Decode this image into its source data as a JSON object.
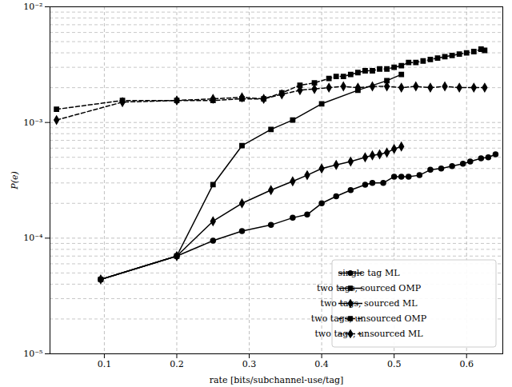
{
  "chart_data": {
    "type": "line",
    "x_label": "rate [bits/subchannel-use/tag]",
    "y_label": "P(e)",
    "log": "y",
    "grid": true,
    "legend": "lower right",
    "xlim": [
      0.025,
      0.65
    ],
    "xticks": [
      0.1,
      0.2,
      0.3,
      0.4,
      0.5,
      0.6
    ],
    "ylim": [
      1e-05,
      0.01
    ],
    "yticks": [
      {
        "value": 1e-05,
        "label": "10⁻⁵"
      },
      {
        "value": 0.0001,
        "label": "10⁻⁴"
      },
      {
        "value": 0.001,
        "label": "10⁻³"
      },
      {
        "value": 0.01,
        "label": "10⁻²"
      }
    ],
    "series": [
      {
        "name": "single tag ML",
        "color": "#000000",
        "marker": "circle",
        "line_style": "solid",
        "x": [
          0.095,
          0.2,
          0.25,
          0.29,
          0.33,
          0.36,
          0.38,
          0.4,
          0.42,
          0.44,
          0.46,
          0.47,
          0.485,
          0.5,
          0.51,
          0.52,
          0.535,
          0.55,
          0.565,
          0.58,
          0.595,
          0.605,
          0.62,
          0.63,
          0.64
        ],
        "values": [
          4.4e-05,
          7e-05,
          9.5e-05,
          0.000115,
          0.00013,
          0.00015,
          0.00016,
          0.0002,
          0.00023,
          0.00026,
          0.00029,
          0.0003,
          0.0003,
          0.00034,
          0.00034,
          0.00034,
          0.00035,
          0.00039,
          0.0004,
          0.00042,
          0.00044,
          0.00046,
          0.00049,
          0.0005,
          0.00053
        ]
      },
      {
        "name": "two tags, sourced OMP",
        "color": "#000000",
        "marker": "square",
        "line_style": "solid",
        "x": [
          0.095,
          0.2,
          0.25,
          0.29,
          0.33,
          0.36,
          0.4,
          0.45,
          0.49,
          0.51
        ],
        "values": [
          4.4e-05,
          7e-05,
          0.00029,
          0.00063,
          0.00087,
          0.00105,
          0.00145,
          0.0019,
          0.0023,
          0.0026
        ]
      },
      {
        "name": "two tags, sourced ML",
        "color": "#000000",
        "marker": "diamond",
        "line_style": "solid",
        "x": [
          0.095,
          0.2,
          0.25,
          0.29,
          0.33,
          0.36,
          0.38,
          0.4,
          0.42,
          0.44,
          0.46,
          0.47,
          0.48,
          0.49,
          0.5,
          0.51
        ],
        "values": [
          4.4e-05,
          7e-05,
          0.00014,
          0.0002,
          0.00026,
          0.00031,
          0.00035,
          0.0004,
          0.00043,
          0.00046,
          0.0005,
          0.00052,
          0.00053,
          0.00055,
          0.00059,
          0.00062
        ]
      },
      {
        "name": "two tags, unsourced OMP",
        "color": "#000000",
        "marker": "square",
        "line_style": "dashed",
        "x": [
          0.034,
          0.125,
          0.2,
          0.25,
          0.29,
          0.32,
          0.345,
          0.37,
          0.39,
          0.41,
          0.42,
          0.43,
          0.44,
          0.45,
          0.46,
          0.47,
          0.48,
          0.49,
          0.5,
          0.51,
          0.52,
          0.53,
          0.54,
          0.55,
          0.56,
          0.57,
          0.58,
          0.59,
          0.6,
          0.61,
          0.62,
          0.625
        ],
        "values": [
          0.0013,
          0.00155,
          0.00155,
          0.00155,
          0.0016,
          0.0016,
          0.0018,
          0.0021,
          0.0022,
          0.0024,
          0.0025,
          0.0025,
          0.0026,
          0.0027,
          0.0028,
          0.0028,
          0.0029,
          0.0029,
          0.003,
          0.0031,
          0.0033,
          0.0033,
          0.0034,
          0.0035,
          0.0036,
          0.0037,
          0.0038,
          0.0039,
          0.004,
          0.0041,
          0.0043,
          0.0042
        ]
      },
      {
        "name": "two tags, unsourced ML",
        "color": "#000000",
        "marker": "diamond",
        "line_style": "dashed",
        "x": [
          0.034,
          0.125,
          0.2,
          0.25,
          0.29,
          0.32,
          0.345,
          0.37,
          0.39,
          0.41,
          0.43,
          0.45,
          0.47,
          0.49,
          0.51,
          0.53,
          0.55,
          0.57,
          0.59,
          0.61,
          0.625
        ],
        "values": [
          0.00105,
          0.0015,
          0.00155,
          0.0016,
          0.00165,
          0.0016,
          0.00175,
          0.0019,
          0.00195,
          0.002,
          0.00205,
          0.002,
          0.00205,
          0.00205,
          0.002,
          0.00205,
          0.002,
          0.00205,
          0.002,
          0.002,
          0.002
        ]
      }
    ]
  }
}
